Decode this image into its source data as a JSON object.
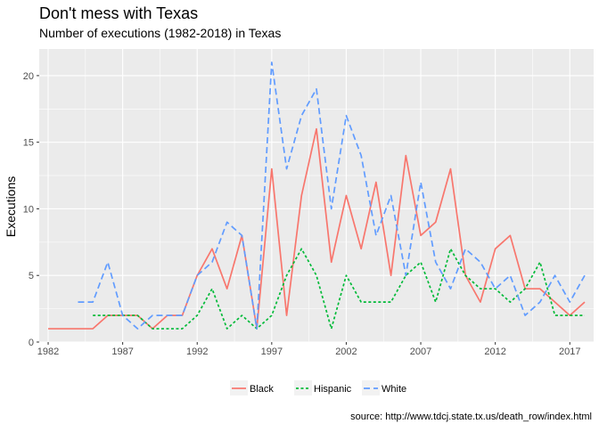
{
  "chart_data": {
    "type": "line",
    "title": "Don't mess with Texas",
    "subtitle": "Number of executions (1982-2018) in Texas",
    "xlabel": "",
    "ylabel": "Executions",
    "caption": "source: http://www.tdcj.state.tx.us/death_row/index.html",
    "xlim": [
      1981.4,
      2018.6
    ],
    "ylim": [
      0,
      22
    ],
    "x_ticks": [
      1982,
      1987,
      1992,
      1997,
      2002,
      2007,
      2012,
      2017
    ],
    "y_ticks": [
      0,
      5,
      10,
      15,
      20
    ],
    "grid": true,
    "legend_position": "bottom",
    "background": "#ebebeb",
    "series": [
      {
        "name": "Black",
        "color": "#f8766d",
        "dash": "solid",
        "x": [
          1982,
          1983,
          1984,
          1985,
          1986,
          1987,
          1988,
          1989,
          1990,
          1991,
          1992,
          1993,
          1994,
          1995,
          1996,
          1997,
          1998,
          1999,
          2000,
          2001,
          2002,
          2003,
          2004,
          2005,
          2006,
          2007,
          2008,
          2009,
          2010,
          2011,
          2012,
          2013,
          2014,
          2015,
          2016,
          2017,
          2018
        ],
        "values": [
          1,
          1,
          1,
          1,
          2,
          2,
          2,
          1,
          2,
          2,
          5,
          7,
          4,
          8,
          1,
          13,
          2,
          11,
          16,
          6,
          11,
          7,
          12,
          5,
          14,
          8,
          9,
          13,
          5,
          3,
          7,
          8,
          4,
          4,
          3,
          2,
          3
        ]
      },
      {
        "name": "Hispanic",
        "color": "#00ba38",
        "dash": "dotted",
        "x": [
          1985,
          1986,
          1987,
          1988,
          1989,
          1990,
          1991,
          1992,
          1993,
          1994,
          1995,
          1996,
          1997,
          1998,
          1999,
          2000,
          2001,
          2002,
          2003,
          2004,
          2005,
          2006,
          2007,
          2008,
          2009,
          2010,
          2011,
          2012,
          2013,
          2014,
          2015,
          2016,
          2017,
          2018
        ],
        "values": [
          2,
          2,
          2,
          2,
          1,
          1,
          1,
          2,
          4,
          1,
          2,
          1,
          2,
          5,
          7,
          5,
          1,
          5,
          3,
          3,
          3,
          5,
          6,
          3,
          7,
          5,
          4,
          4,
          3,
          4,
          6,
          2,
          2,
          2
        ]
      },
      {
        "name": "White",
        "color": "#619cff",
        "dash": "dashed",
        "x": [
          1984,
          1985,
          1986,
          1987,
          1988,
          1989,
          1990,
          1991,
          1992,
          1993,
          1994,
          1995,
          1996,
          1997,
          1998,
          1999,
          2000,
          2001,
          2002,
          2003,
          2004,
          2005,
          2006,
          2007,
          2008,
          2009,
          2010,
          2011,
          2012,
          2013,
          2014,
          2015,
          2016,
          2017,
          2018
        ],
        "values": [
          3,
          3,
          6,
          2,
          1,
          2,
          2,
          2,
          5,
          6,
          9,
          8,
          1,
          21,
          13,
          17,
          19,
          10,
          17,
          14,
          8,
          11,
          5,
          12,
          6,
          4,
          7,
          6,
          4,
          5,
          2,
          3,
          5,
          3,
          5
        ]
      }
    ]
  }
}
